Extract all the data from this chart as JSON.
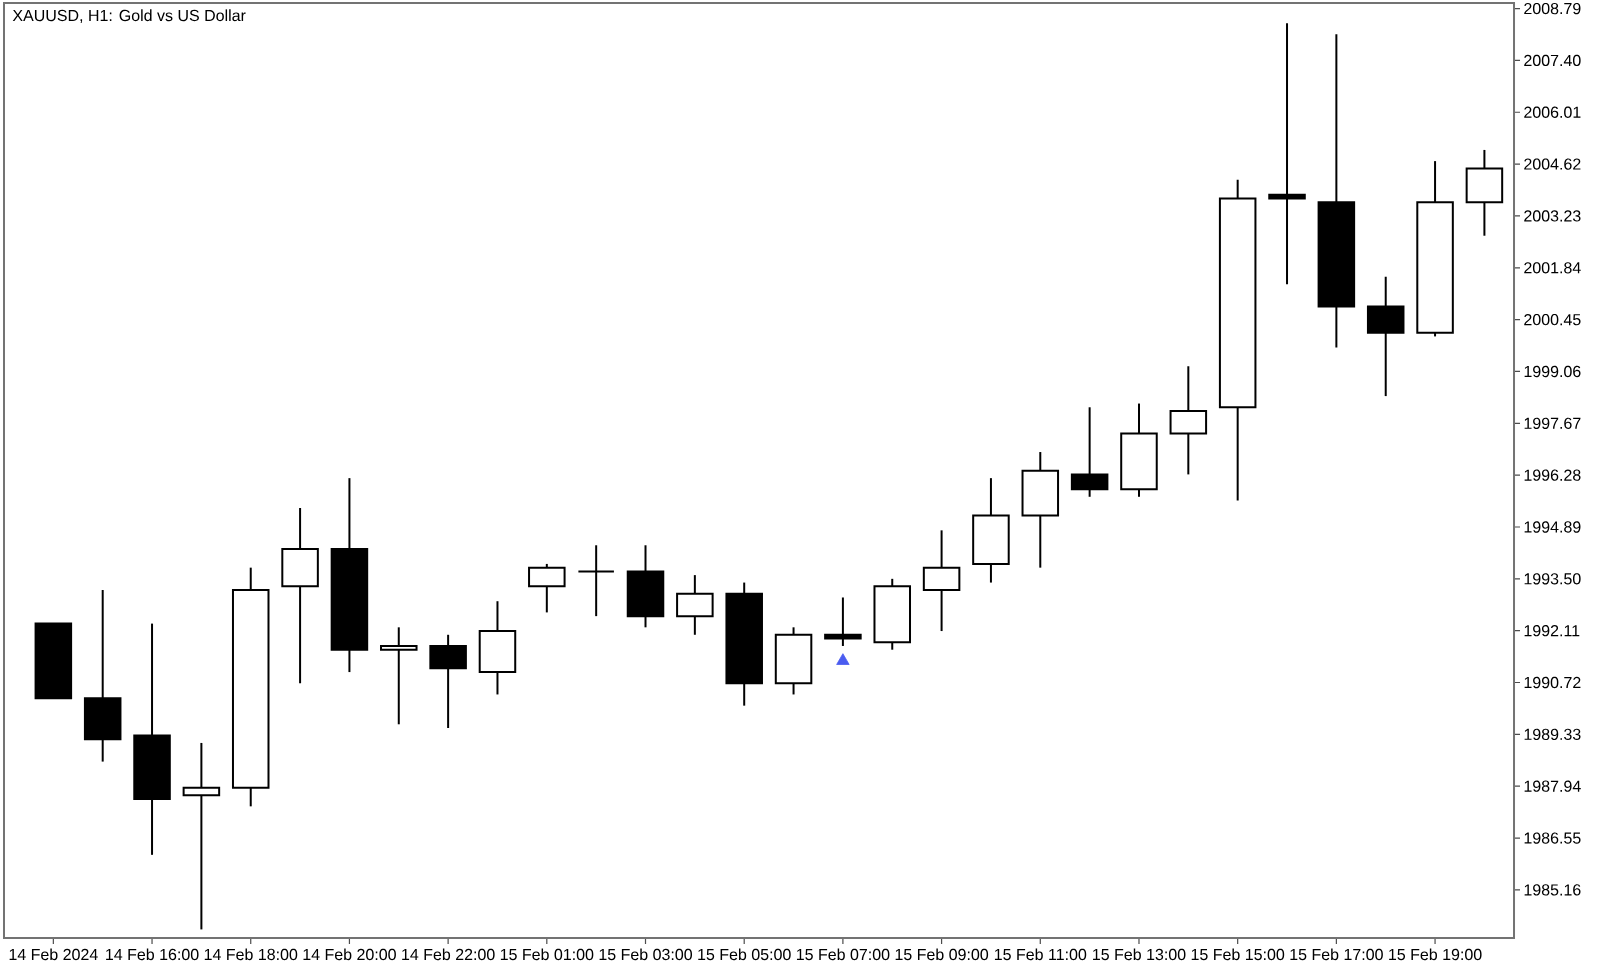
{
  "chart_data": {
    "type": "candlestick",
    "title": "XAUUSD, H1: Gold vs US Dollar",
    "categories": [
      "14 Feb 2024",
      null,
      "14 Feb 16:00",
      null,
      "14 Feb 18:00",
      null,
      "14 Feb 20:00",
      null,
      "14 Feb 22:00",
      null,
      "15 Feb 01:00",
      null,
      "15 Feb 03:00",
      null,
      "15 Feb 05:00",
      null,
      "15 Feb 07:00",
      null,
      "15 Feb 09:00",
      null,
      "15 Feb 11:00",
      null,
      "15 Feb 13:00",
      null,
      "15 Feb 15:00",
      null,
      "15 Feb 17:00",
      null,
      "15 Feb 19:00",
      null
    ],
    "ohlc": [
      [
        1992.3,
        1992.3,
        1990.3,
        1990.3
      ],
      [
        1990.3,
        1993.2,
        1988.6,
        1989.2
      ],
      [
        1989.3,
        1992.3,
        1986.1,
        1987.6
      ],
      [
        1987.7,
        1989.1,
        1984.1,
        1987.9
      ],
      [
        1987.9,
        1993.8,
        1987.4,
        1993.2
      ],
      [
        1993.3,
        1995.4,
        1990.7,
        1994.3
      ],
      [
        1994.3,
        1996.2,
        1991.0,
        1991.6
      ],
      [
        1991.6,
        1992.2,
        1989.6,
        1991.7
      ],
      [
        1991.7,
        1992.0,
        1989.5,
        1991.1
      ],
      [
        1991.0,
        1992.9,
        1990.4,
        1992.1
      ],
      [
        1993.3,
        1993.9,
        1992.6,
        1993.8
      ],
      [
        1993.7,
        1994.4,
        1992.5,
        1993.7
      ],
      [
        1993.7,
        1994.4,
        1992.2,
        1992.5
      ],
      [
        1992.5,
        1993.6,
        1992.0,
        1993.1
      ],
      [
        1993.1,
        1993.4,
        1990.1,
        1990.7
      ],
      [
        1990.7,
        1992.2,
        1990.4,
        1992.0
      ],
      [
        1992.0,
        1993.0,
        1991.7,
        1991.9
      ],
      [
        1991.8,
        1993.5,
        1991.6,
        1993.3
      ],
      [
        1993.2,
        1994.8,
        1992.1,
        1993.8
      ],
      [
        1993.9,
        1996.2,
        1993.4,
        1995.2
      ],
      [
        1995.2,
        1996.9,
        1993.8,
        1996.4
      ],
      [
        1996.3,
        1998.1,
        1995.7,
        1995.9
      ],
      [
        1995.9,
        1998.2,
        1995.7,
        1997.4
      ],
      [
        1997.4,
        1999.2,
        1996.3,
        1998.0
      ],
      [
        1998.1,
        2004.2,
        1995.6,
        2003.7
      ],
      [
        2003.8,
        2008.4,
        2001.4,
        2003.7
      ],
      [
        2003.6,
        2008.1,
        1999.7,
        2000.8
      ],
      [
        2000.8,
        2001.6,
        1998.4,
        2000.1
      ],
      [
        2000.1,
        2004.7,
        2000.0,
        2003.6
      ],
      [
        2003.6,
        2005.0,
        2002.7,
        2004.5
      ]
    ],
    "color": "#000000",
    "colors": [
      "#000000",
      "#000000",
      "#000000",
      "#ffffff",
      "#ffffff",
      "#ffffff",
      "#000000",
      "#ffffff",
      "#000000",
      "#ffffff",
      "#ffffff",
      "#000000",
      "#000000",
      "#ffffff",
      "#000000",
      "#ffffff",
      "#000000",
      "#ffffff",
      "#ffffff",
      "#ffffff",
      "#ffffff",
      "#000000",
      "#ffffff",
      "#ffffff",
      "#ffffff",
      "#000000",
      "#000000",
      "#000000",
      "#ffffff",
      "#ffffff"
    ],
    "series": [
      {
        "type": "scatter",
        "color": "#4a5cf0",
        "marker": "triangle",
        "values": [
          null,
          null,
          null,
          null,
          null,
          null,
          null,
          null,
          null,
          null,
          null,
          null,
          null,
          null,
          null,
          null,
          1991.3,
          null,
          null,
          null,
          null,
          null,
          null,
          null,
          null,
          null,
          null,
          null,
          null,
          null
        ]
      }
    ],
    "ylim": [
      1983.87,
      2008.94
    ],
    "yticks": [
      2008.79,
      {
        "value": 2007.4,
        "label": "2007.40"
      },
      2006.01,
      2004.62,
      2003.23,
      2001.84,
      2000.45,
      1999.06,
      1997.67,
      1996.28,
      1994.89,
      {
        "value": 1993.5,
        "label": "1993.50"
      },
      1992.11,
      1990.72,
      1989.33,
      1987.94,
      1986.55,
      1985.16
    ]
  }
}
